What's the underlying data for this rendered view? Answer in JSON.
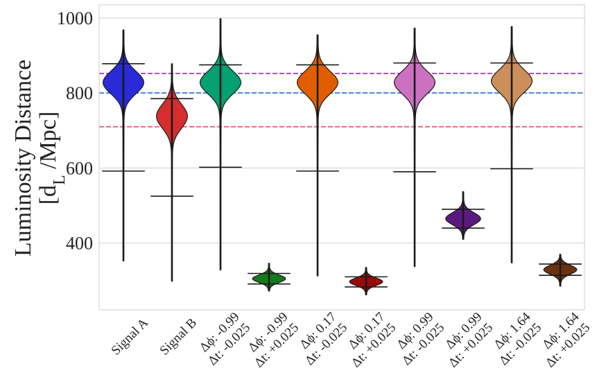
{
  "chart_data": {
    "type": "violin",
    "ylabel_line1": "Luminosity Distance",
    "ylabel_line2": "[d",
    "ylabel_sub": "L",
    "ylabel_line2_tail": " /Mpc]",
    "ylim": [
      222,
      1035
    ],
    "yticks": [
      400,
      600,
      800,
      1000
    ],
    "ytick_labels": [
      "400",
      "600",
      "800",
      "1000"
    ],
    "grid": true,
    "reference_lines": [
      {
        "value": 852,
        "color": "#b04ec7"
      },
      {
        "value": 800,
        "color": "#4a86d8"
      },
      {
        "value": 710,
        "color": "#f06a7a"
      }
    ],
    "violins": [
      {
        "label": "Signal A",
        "label_line2": "",
        "color": "#2a2ad8",
        "min": 352,
        "max": 968,
        "q_low": 592,
        "q_high": 878,
        "mode": 828,
        "width": 0.42,
        "spread": 30
      },
      {
        "label": "Signal B",
        "label_line2": "",
        "color": "#d62e2e",
        "min": 298,
        "max": 878,
        "q_low": 525,
        "q_high": 785,
        "mode": 738,
        "width": 0.32,
        "spread": 32
      },
      {
        "label": "Δϕ: -0.99",
        "label_line2": "Δt: -0.025",
        "color": "#05a070",
        "min": 328,
        "max": 998,
        "q_low": 602,
        "q_high": 875,
        "mode": 828,
        "width": 0.42,
        "spread": 30
      },
      {
        "label": "Δϕ: -0.99",
        "label_line2": "Δt: +0.025",
        "color": "#157a1a",
        "min": 272,
        "max": 346,
        "q_low": 291,
        "q_high": 319,
        "mode": 305,
        "width": 0.34,
        "spread": 10
      },
      {
        "label": "Δϕ: 0.17",
        "label_line2": "Δt: -0.025",
        "color": "#e05e00",
        "min": 312,
        "max": 955,
        "q_low": 592,
        "q_high": 875,
        "mode": 828,
        "width": 0.42,
        "spread": 30
      },
      {
        "label": "Δϕ: 0.17",
        "label_line2": "Δt: +0.025",
        "color": "#9a0a0a",
        "min": 262,
        "max": 335,
        "q_low": 283,
        "q_high": 310,
        "mode": 297,
        "width": 0.34,
        "spread": 10
      },
      {
        "label": "Δϕ: 0.99",
        "label_line2": "Δt: -0.025",
        "color": "#cc70c2",
        "min": 337,
        "max": 973,
        "q_low": 590,
        "q_high": 880,
        "mode": 828,
        "width": 0.42,
        "spread": 30
      },
      {
        "label": "Δϕ: 0.99",
        "label_line2": "Δt: +0.025",
        "color": "#5a1a80",
        "min": 410,
        "max": 537,
        "q_low": 440,
        "q_high": 490,
        "mode": 465,
        "width": 0.36,
        "spread": 16
      },
      {
        "label": "Δϕ: 1.64",
        "label_line2": "Δt: -0.025",
        "color": "#cc8e5a",
        "min": 347,
        "max": 977,
        "q_low": 598,
        "q_high": 880,
        "mode": 832,
        "width": 0.42,
        "spread": 30
      },
      {
        "label": "Δϕ: 1.64",
        "label_line2": "Δt: +0.025",
        "color": "#6a3210",
        "min": 285,
        "max": 370,
        "q_low": 314,
        "q_high": 344,
        "mode": 329,
        "width": 0.34,
        "spread": 12
      }
    ]
  }
}
